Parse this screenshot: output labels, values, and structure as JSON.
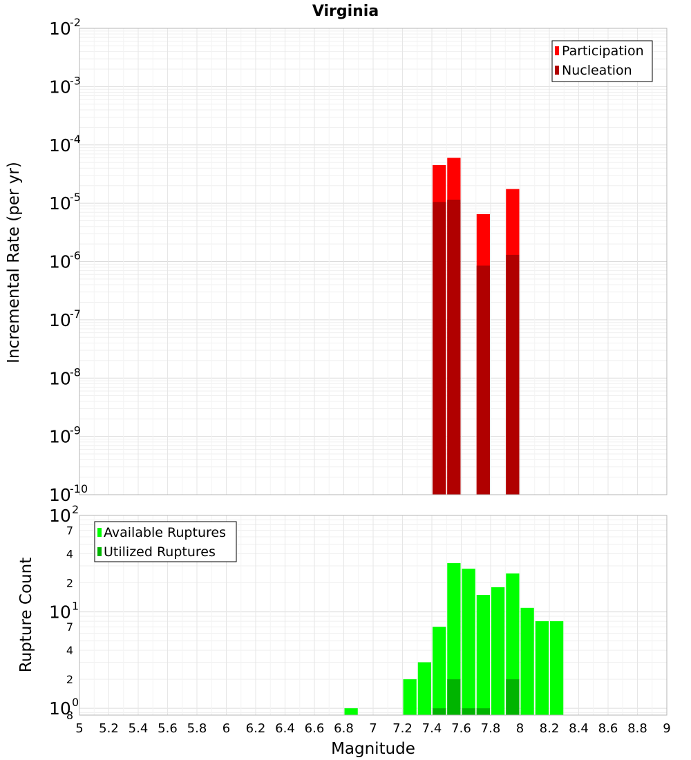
{
  "chart_data": [
    {
      "type": "bar",
      "panel": "top",
      "title": "Virginia",
      "xlabel": "Magnitude",
      "ylabel": "Incremental Rate (per yr)",
      "yscale": "log",
      "xlim": [
        5,
        9
      ],
      "ylim": [
        1e-10,
        0.01
      ],
      "bar_width": 0.1,
      "y_ticks": [
        {
          "base": "10",
          "exp": "-10",
          "value": 1e-10
        },
        {
          "base": "10",
          "exp": "-9",
          "value": 1e-09
        },
        {
          "base": "10",
          "exp": "-8",
          "value": 1e-08
        },
        {
          "base": "10",
          "exp": "-7",
          "value": 1e-07
        },
        {
          "base": "10",
          "exp": "-6",
          "value": 1e-06
        },
        {
          "base": "10",
          "exp": "-5",
          "value": 1e-05
        },
        {
          "base": "10",
          "exp": "-4",
          "value": 0.0001
        },
        {
          "base": "10",
          "exp": "-3",
          "value": 0.001
        },
        {
          "base": "10",
          "exp": "-2",
          "value": 0.01
        }
      ],
      "legend": {
        "position": "top-right",
        "entries": [
          {
            "label": "Participation",
            "color": "#ff0000"
          },
          {
            "label": "Nucleation",
            "color": "#b00000"
          }
        ]
      },
      "series": [
        {
          "name": "Participation",
          "color": "#ff0000",
          "x": [
            7.45,
            7.55,
            7.75,
            7.95
          ],
          "values": [
            4.5e-05,
            6e-05,
            6.5e-06,
            1.75e-05
          ]
        },
        {
          "name": "Nucleation",
          "color": "#b00000",
          "x": [
            7.45,
            7.55,
            7.75,
            7.95
          ],
          "values": [
            1.05e-05,
            1.15e-05,
            8.5e-07,
            1.3e-06
          ]
        }
      ]
    },
    {
      "type": "bar",
      "panel": "bottom",
      "xlabel": "Magnitude",
      "ylabel": "Rupture Count",
      "yscale": "log",
      "xlim": [
        5,
        9
      ],
      "ylim": [
        0.85,
        100
      ],
      "bar_width": 0.1,
      "x_ticks": [
        "5",
        "5.2",
        "5.4",
        "5.6",
        "5.8",
        "6",
        "6.2",
        "6.4",
        "6.6",
        "6.8",
        "7",
        "7.2",
        "7.4",
        "7.6",
        "7.8",
        "8",
        "8.2",
        "8.4",
        "8.6",
        "8.8",
        "9"
      ],
      "y_major_ticks": [
        {
          "base": "10",
          "exp": "0",
          "value": 1
        },
        {
          "base": "10",
          "exp": "1",
          "value": 10
        },
        {
          "base": "10",
          "exp": "2",
          "value": 100
        }
      ],
      "y_minor_ticks": [
        {
          "label": "8",
          "value": 0.85
        },
        {
          "label": "2",
          "value": 2
        },
        {
          "label": "4",
          "value": 4
        },
        {
          "label": "7",
          "value": 7
        },
        {
          "label": "2",
          "value": 20
        },
        {
          "label": "4",
          "value": 40
        },
        {
          "label": "7",
          "value": 70
        }
      ],
      "legend": {
        "position": "top-left",
        "entries": [
          {
            "label": "Available Ruptures",
            "color": "#00ff00"
          },
          {
            "label": "Utilized Ruptures",
            "color": "#00b400"
          }
        ]
      },
      "series": [
        {
          "name": "Available Ruptures",
          "color": "#00ff00",
          "x": [
            6.85,
            7.25,
            7.35,
            7.45,
            7.55,
            7.65,
            7.75,
            7.85,
            7.95,
            8.05,
            8.15,
            8.25
          ],
          "values": [
            1,
            2,
            3,
            7,
            32,
            28,
            15,
            18,
            25,
            11,
            8,
            8
          ]
        },
        {
          "name": "Utilized Ruptures",
          "color": "#00b400",
          "x": [
            7.45,
            7.55,
            7.65,
            7.75,
            7.95
          ],
          "values": [
            1,
            2,
            1,
            1,
            2
          ]
        }
      ]
    }
  ]
}
